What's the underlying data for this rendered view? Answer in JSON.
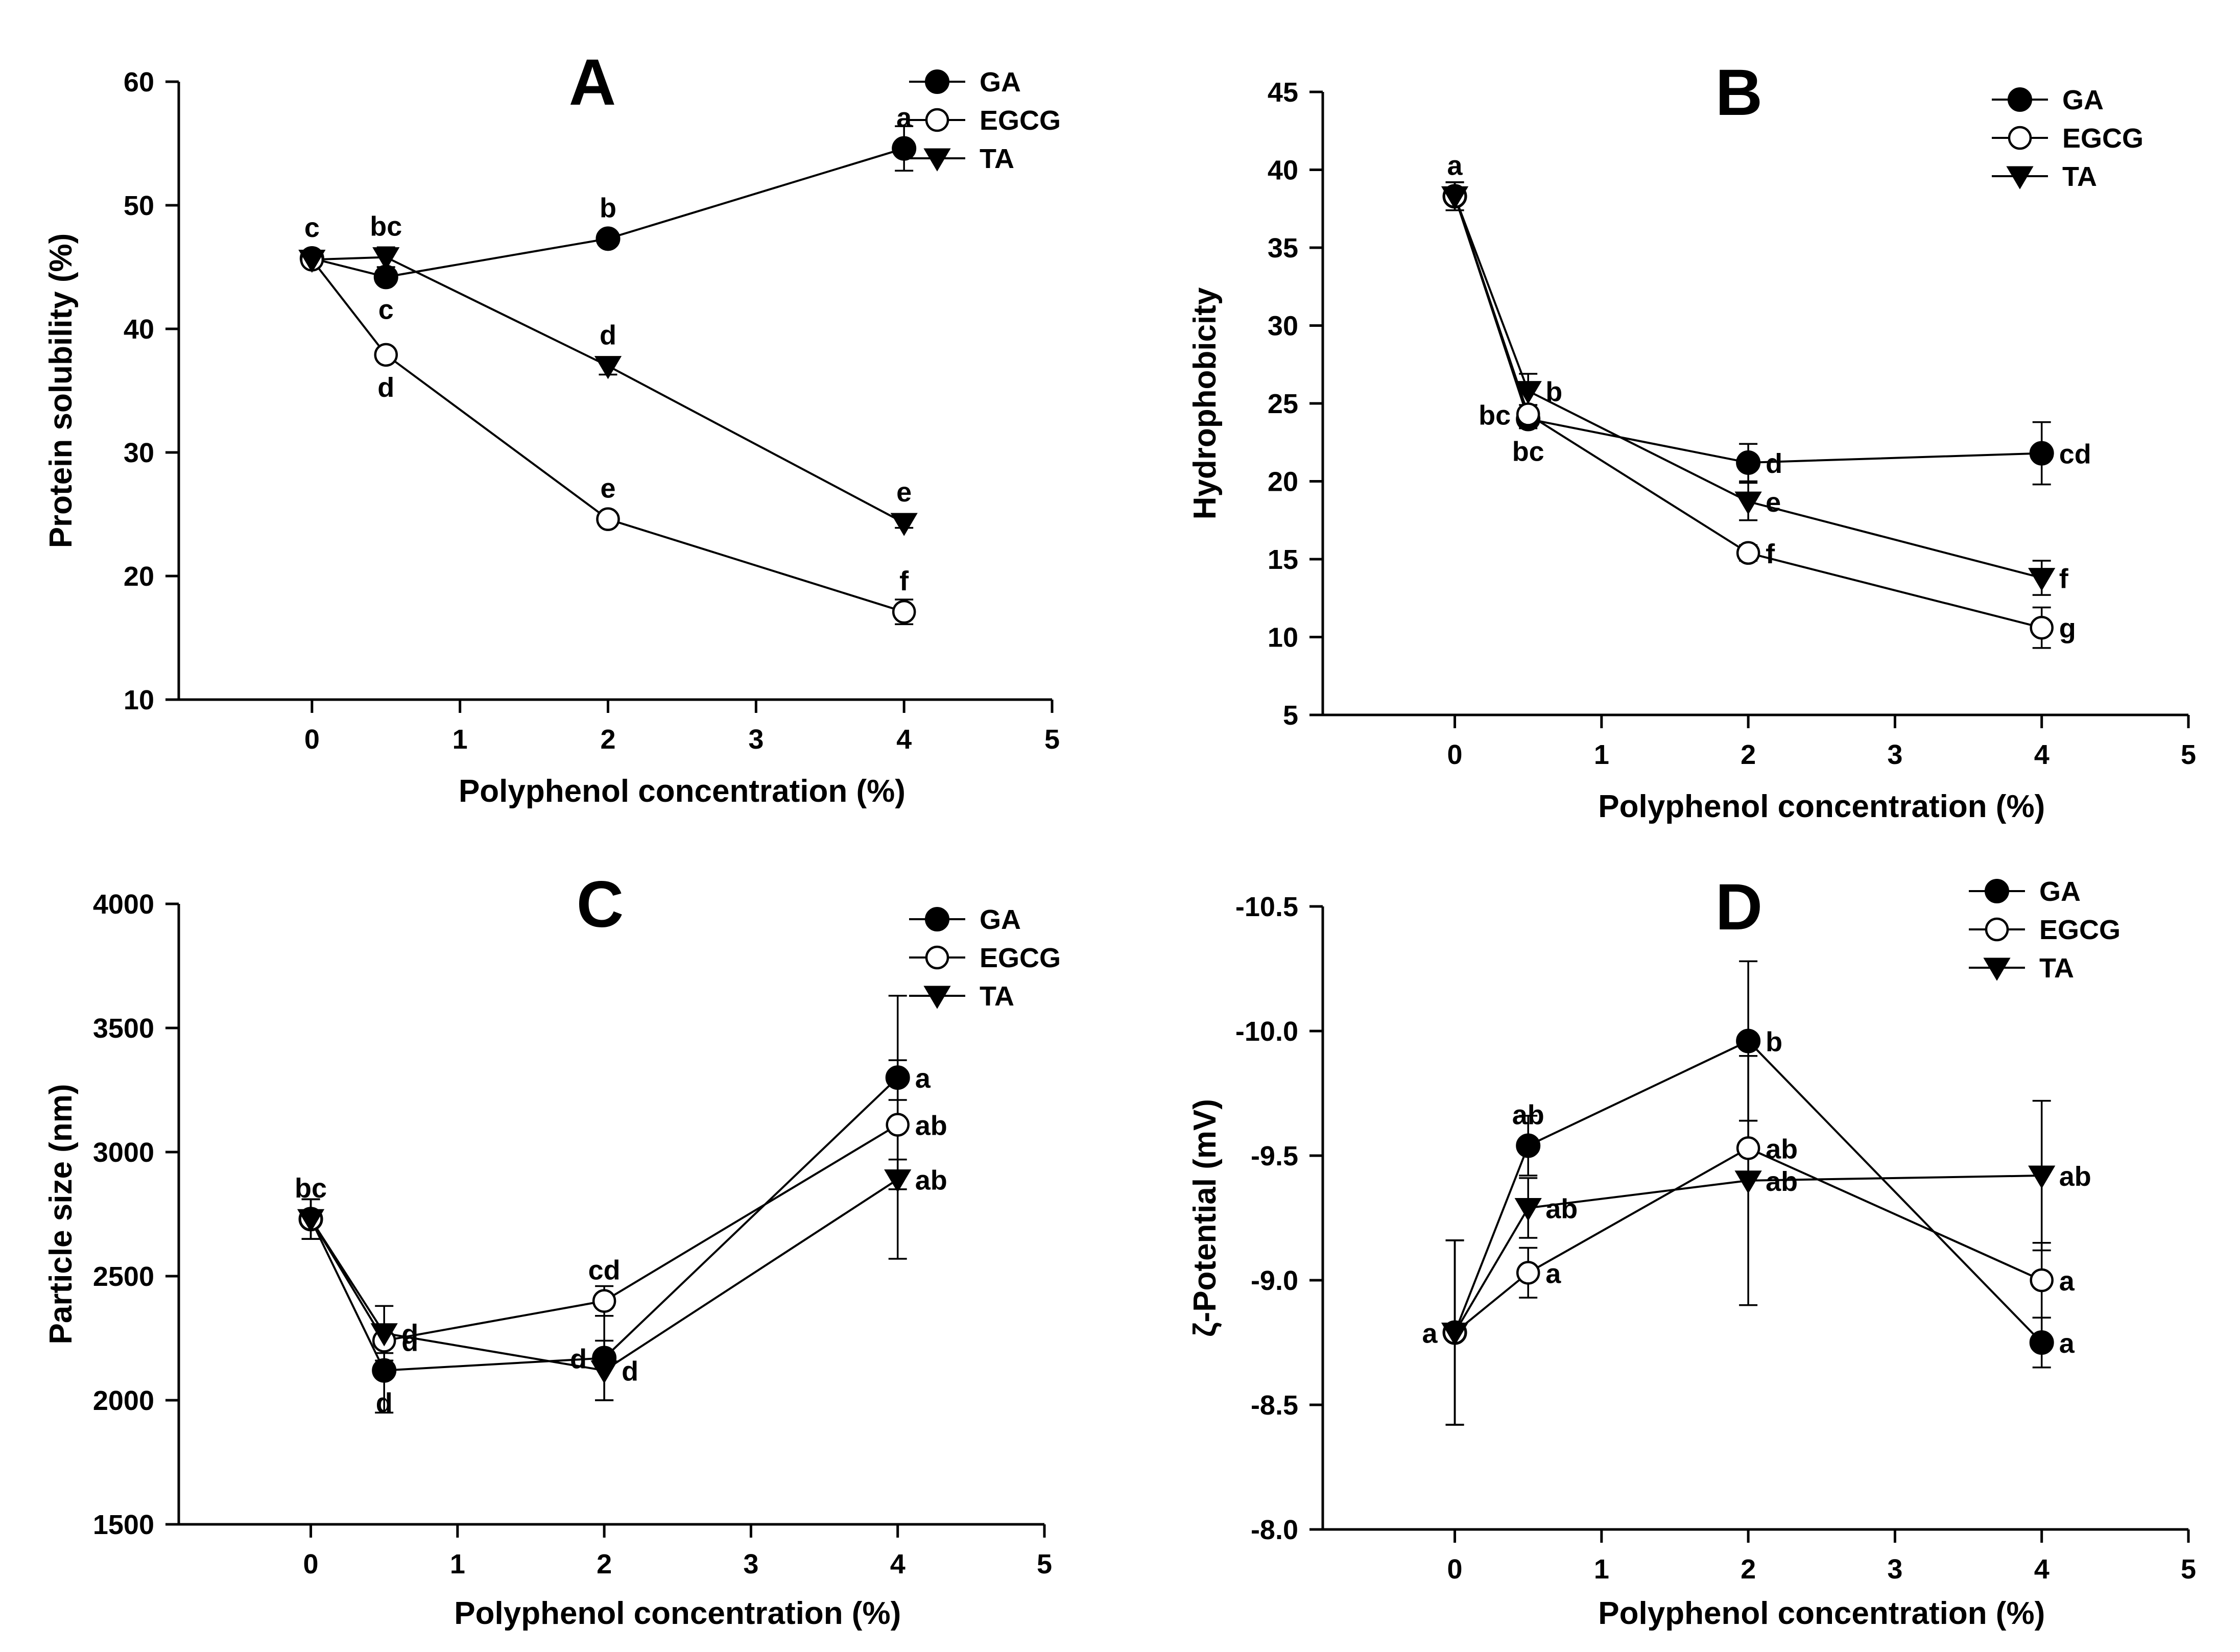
{
  "figure": {
    "legend_series": [
      "GA",
      "EGCG",
      "TA"
    ]
  },
  "chart_data": [
    {
      "panel": "A",
      "type": "line",
      "title": "A",
      "xlabel": "Polyphenol concentration (%)",
      "ylabel": "Protein solubility (%)",
      "xlim": [
        -0.9,
        5
      ],
      "ylim": [
        10,
        60
      ],
      "xticks": [
        0,
        1,
        2,
        3,
        4,
        5
      ],
      "yticks": [
        10,
        20,
        30,
        40,
        50,
        60
      ],
      "legend": [
        "GA",
        "EGCG",
        "TA"
      ],
      "x": [
        0,
        0.5,
        2,
        4
      ],
      "series": [
        {
          "name": "GA",
          "marker": "filled-circle",
          "values": [
            45.7,
            44.2,
            47.3,
            54.6
          ],
          "errors": [
            0.3,
            0.5,
            0.5,
            1.8
          ],
          "labels": [
            "c",
            "c",
            "b",
            "a"
          ],
          "label_pos": [
            "above",
            "below",
            "above",
            "above"
          ]
        },
        {
          "name": "EGCG",
          "marker": "open-circle",
          "values": [
            45.6,
            37.9,
            24.6,
            17.1
          ],
          "errors": [
            0.3,
            0.4,
            0.4,
            1.0
          ],
          "labels": [
            "",
            "d",
            "e",
            "f"
          ],
          "label_pos": [
            "",
            "below",
            "above",
            "above"
          ]
        },
        {
          "name": "TA",
          "marker": "filled-triangle",
          "values": [
            45.6,
            45.8,
            37.0,
            24.3
          ],
          "errors": [
            0.3,
            0.8,
            0.7,
            0.4
          ],
          "labels": [
            "",
            "bc",
            "d",
            "e"
          ],
          "label_pos": [
            "",
            "above",
            "above",
            "above"
          ]
        }
      ]
    },
    {
      "panel": "B",
      "type": "line",
      "title": "B",
      "xlabel": "Polyphenol concentration (%)",
      "ylabel": "Hydrophobicity",
      "xlim": [
        -0.9,
        5
      ],
      "ylim": [
        5,
        45
      ],
      "xticks": [
        0,
        1,
        2,
        3,
        4,
        5
      ],
      "yticks": [
        5,
        10,
        15,
        20,
        25,
        30,
        35,
        40,
        45
      ],
      "legend": [
        "GA",
        "EGCG",
        "TA"
      ],
      "x": [
        0,
        0.5,
        2,
        4
      ],
      "series": [
        {
          "name": "GA",
          "marker": "filled-circle",
          "values": [
            38.3,
            24.0,
            21.2,
            21.8
          ],
          "errors": [
            0.9,
            0.6,
            1.2,
            2.0
          ],
          "labels": [
            "a",
            "bc",
            "d",
            "cd"
          ],
          "label_pos": [
            "above",
            "below",
            "right",
            "right"
          ]
        },
        {
          "name": "EGCG",
          "marker": "open-circle",
          "values": [
            38.3,
            24.3,
            15.4,
            10.6
          ],
          "errors": [
            0.9,
            0.6,
            0.5,
            1.3
          ],
          "labels": [
            "",
            "bc",
            "f",
            "g"
          ],
          "label_pos": [
            "",
            "left",
            "right",
            "right"
          ]
        },
        {
          "name": "TA",
          "marker": "filled-triangle",
          "values": [
            38.3,
            25.8,
            18.7,
            13.8
          ],
          "errors": [
            0.9,
            1.1,
            1.2,
            1.1
          ],
          "labels": [
            "",
            "b",
            "e",
            "f"
          ],
          "label_pos": [
            "",
            "right",
            "right",
            "right"
          ]
        }
      ]
    },
    {
      "panel": "C",
      "type": "line",
      "title": "C",
      "xlabel": "Polyphenol concentration (%)",
      "ylabel": "Particle size (nm)",
      "xlim": [
        -0.9,
        5
      ],
      "ylim": [
        1500,
        4000
      ],
      "xticks": [
        0,
        1,
        2,
        3,
        4,
        5
      ],
      "yticks": [
        1500,
        2000,
        2500,
        3000,
        3500,
        4000
      ],
      "legend": [
        "GA",
        "EGCG",
        "TA"
      ],
      "x": [
        0,
        0.5,
        2,
        4
      ],
      "series": [
        {
          "name": "GA",
          "marker": "filled-circle",
          "values": [
            2730,
            2120,
            2170,
            3300
          ],
          "errors": [
            80,
            170,
            170,
            330
          ],
          "labels": [
            "bc",
            "d",
            "d",
            "a"
          ],
          "label_pos": [
            "above",
            "below",
            "left",
            "right"
          ]
        },
        {
          "name": "EGCG",
          "marker": "open-circle",
          "values": [
            2730,
            2240,
            2400,
            3110
          ],
          "errors": [
            80,
            50,
            60,
            260
          ],
          "labels": [
            "",
            "d",
            "cd",
            "ab"
          ],
          "label_pos": [
            "",
            "right",
            "above",
            "right"
          ]
        },
        {
          "name": "TA",
          "marker": "filled-triangle",
          "values": [
            2730,
            2270,
            2120,
            2890
          ],
          "errors": [
            80,
            110,
            120,
            320
          ],
          "labels": [
            "",
            "d",
            "d",
            "ab"
          ],
          "label_pos": [
            "",
            "right",
            "right",
            "right"
          ]
        }
      ]
    },
    {
      "panel": "D",
      "type": "line",
      "title": "D",
      "xlabel": "Polyphenol concentration (%)",
      "ylabel": "ζ-Potential (mV)",
      "xlim": [
        -0.9,
        5
      ],
      "ylim": [
        -8.0,
        -10.5
      ],
      "xticks": [
        0,
        1,
        2,
        3,
        4,
        5
      ],
      "yticks": [
        -8.0,
        -8.5,
        -9.0,
        -9.5,
        -10.0,
        -10.5
      ],
      "ytick_labels": [
        "-8.0",
        "-8.5",
        "-9.0",
        "-9.5",
        "-10.0",
        "-10.5"
      ],
      "legend": [
        "GA",
        "EGCG",
        "TA"
      ],
      "x": [
        0,
        0.5,
        2,
        4
      ],
      "series": [
        {
          "name": "GA",
          "marker": "filled-circle",
          "values": [
            -8.79,
            -9.54,
            -9.96,
            -8.75
          ],
          "errors": [
            0.37,
            0.12,
            0.32,
            0.1
          ],
          "labels": [
            "a",
            "ab",
            "b",
            "a"
          ],
          "label_pos": [
            "left",
            "above",
            "right",
            "right"
          ]
        },
        {
          "name": "EGCG",
          "marker": "open-circle",
          "values": [
            -8.79,
            -9.03,
            -9.53,
            -9.0
          ],
          "errors": [
            0.37,
            0.1,
            0.11,
            0.15
          ],
          "labels": [
            "",
            "a",
            "ab",
            "a"
          ],
          "label_pos": [
            "",
            "right",
            "right",
            "right"
          ]
        },
        {
          "name": "TA",
          "marker": "filled-triangle",
          "values": [
            -8.79,
            -9.29,
            -9.4,
            -9.42
          ],
          "errors": [
            0.37,
            0.12,
            0.5,
            0.3
          ],
          "labels": [
            "",
            "ab",
            "ab",
            "ab"
          ],
          "label_pos": [
            "",
            "right",
            "right",
            "right"
          ]
        }
      ]
    }
  ]
}
